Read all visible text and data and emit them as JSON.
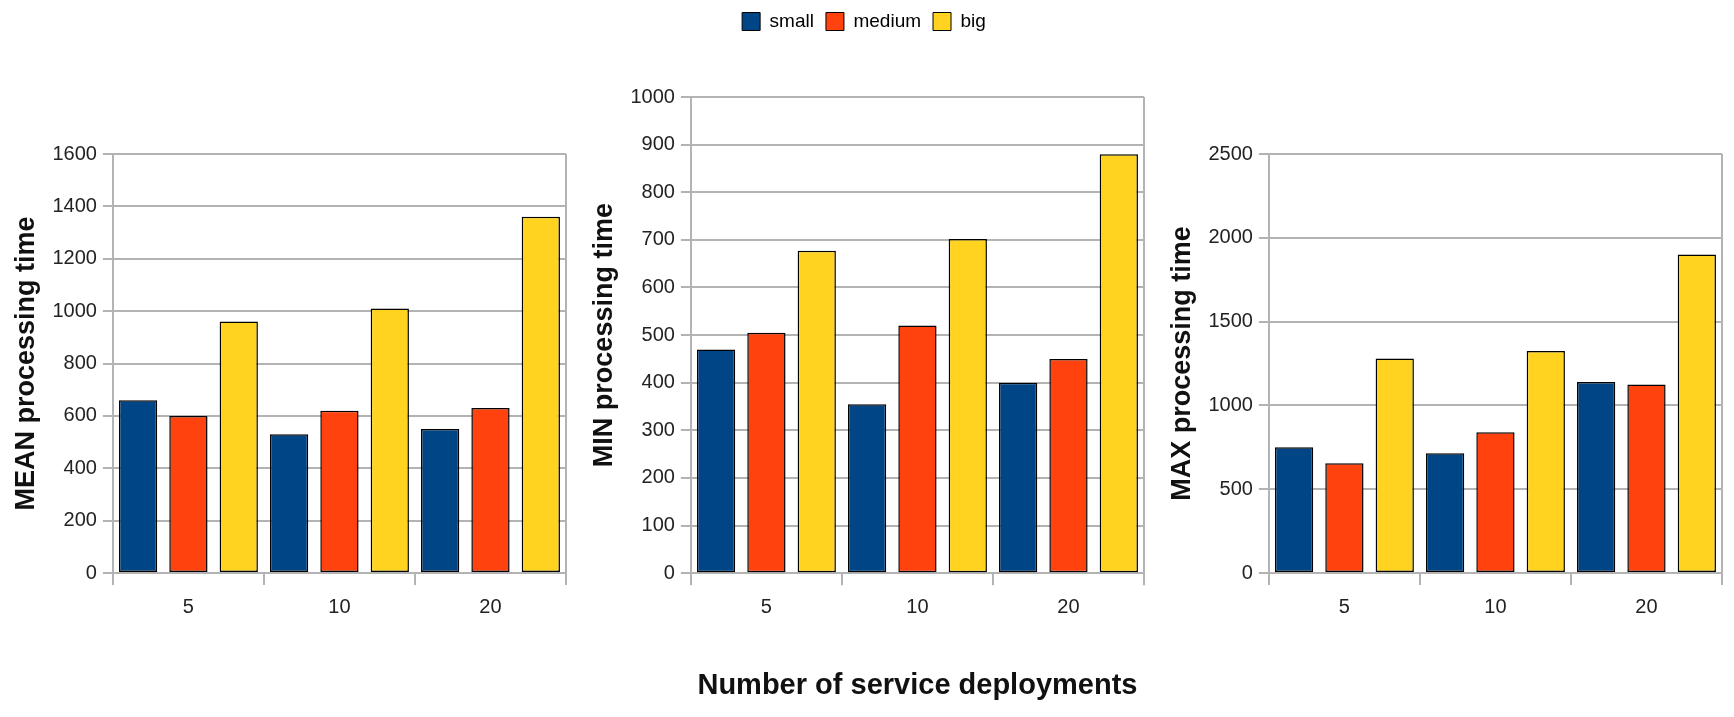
{
  "chart_data": [
    {
      "type": "bar",
      "ylabel": "MEAN processing time",
      "categories": [
        "5",
        "10",
        "20"
      ],
      "ylim": [
        0,
        1600
      ],
      "yticks": [
        0,
        200,
        400,
        600,
        800,
        1000,
        1200,
        1400,
        1600
      ],
      "grid": "y",
      "legend": false,
      "series": [
        {
          "color": "#004586",
          "values": [
            660,
            530,
            550
          ]
        },
        {
          "color": "#ff420e",
          "values": [
            600,
            620,
            630
          ]
        },
        {
          "color": "#ffd320",
          "values": [
            960,
            1010,
            1360
          ]
        }
      ]
    },
    {
      "type": "bar",
      "ylabel": "MIN processing time",
      "xlabel": "Number of service deployments",
      "categories": [
        "5",
        "10",
        "20"
      ],
      "ylim": [
        0,
        1000
      ],
      "yticks": [
        0,
        100,
        200,
        300,
        400,
        500,
        600,
        700,
        800,
        900,
        1000
      ],
      "grid": "y",
      "legend": "top",
      "series": [
        {
          "name": "small",
          "color": "#004586",
          "values": [
            470,
            355,
            400
          ]
        },
        {
          "name": "medium",
          "color": "#ff420e",
          "values": [
            505,
            520,
            450
          ]
        },
        {
          "name": "big",
          "color": "#ffd320",
          "values": [
            677,
            702,
            880
          ]
        }
      ]
    },
    {
      "type": "bar",
      "ylabel": "MAX processing time",
      "categories": [
        "5",
        "10",
        "20"
      ],
      "ylim": [
        0,
        2500
      ],
      "yticks": [
        0,
        500,
        1000,
        1500,
        2000,
        2500
      ],
      "grid": "y",
      "legend": false,
      "series": [
        {
          "color": "#004586",
          "values": [
            750,
            715,
            1140
          ]
        },
        {
          "color": "#ff420e",
          "values": [
            655,
            840,
            1125
          ]
        },
        {
          "color": "#ffd320",
          "values": [
            1280,
            1325,
            1900
          ]
        }
      ]
    }
  ]
}
